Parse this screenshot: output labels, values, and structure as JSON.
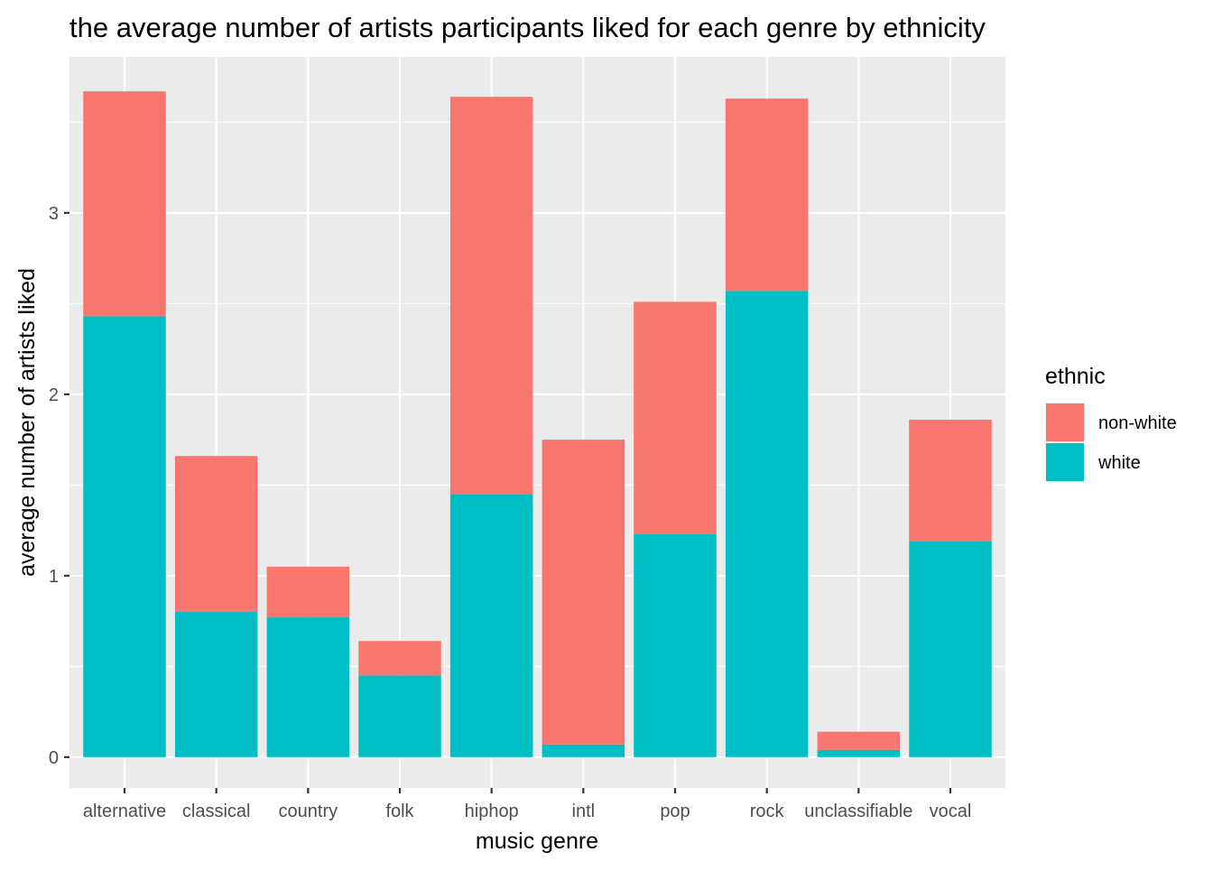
{
  "chart_data": {
    "type": "bar",
    "stacked": true,
    "title": "the average number of artists participants liked for each genre by ethnicity",
    "xlabel": "music genre",
    "ylabel": "average number of artists liked",
    "categories": [
      "alternative",
      "classical",
      "country",
      "folk",
      "hiphop",
      "intl",
      "pop",
      "rock",
      "unclassifiable",
      "vocal"
    ],
    "series": [
      {
        "name": "white",
        "color": "#00BFC4",
        "values": [
          2.43,
          0.8,
          0.77,
          0.45,
          1.45,
          0.07,
          1.23,
          2.57,
          0.04,
          1.19
        ]
      },
      {
        "name": "non-white",
        "color": "#F8766D",
        "values": [
          1.24,
          0.86,
          0.28,
          0.19,
          2.19,
          1.68,
          1.28,
          1.06,
          0.1,
          0.67
        ]
      }
    ],
    "yticks": [
      0,
      1,
      2,
      3
    ],
    "ylim": [
      -0.17,
      3.86
    ],
    "grid": true,
    "legend": {
      "title": "ethnic",
      "position": "right",
      "entries": [
        {
          "label": "non-white",
          "color": "#F8766D"
        },
        {
          "label": "white",
          "color": "#00BFC4"
        }
      ]
    }
  }
}
